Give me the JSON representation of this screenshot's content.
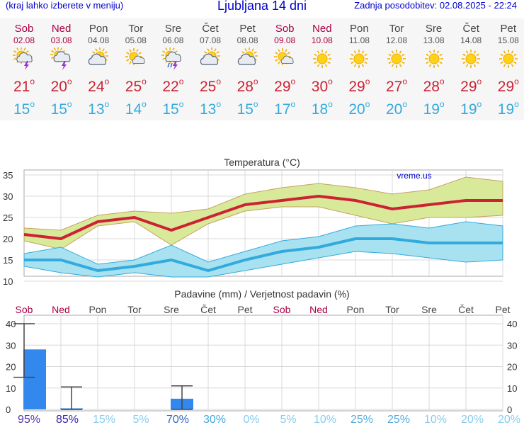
{
  "header": {
    "left_note": "(kraj lahko izberete v meniju)",
    "title": "Ljubljana 14 dni",
    "updated": "Zadnja posodobitev: 02.08.2025 - 22:24"
  },
  "days": [
    {
      "name": "Sob",
      "date": "02.08",
      "weekend": true,
      "icon": "sun-cloud-thunder-icon",
      "max": "21",
      "min": "15"
    },
    {
      "name": "Ned",
      "date": "03.08",
      "weekend": true,
      "icon": "cloud-thunder-icon",
      "max": "20",
      "min": "15"
    },
    {
      "name": "Pon",
      "date": "04.08",
      "weekend": false,
      "icon": "sun-behind-cloud-icon",
      "max": "24",
      "min": "13"
    },
    {
      "name": "Tor",
      "date": "05.08",
      "weekend": false,
      "icon": "sun-small-cloud-icon",
      "max": "25",
      "min": "14"
    },
    {
      "name": "Sre",
      "date": "06.08",
      "weekend": false,
      "icon": "sun-cloud-rain-thunder-icon",
      "max": "22",
      "min": "15"
    },
    {
      "name": "Čet",
      "date": "07.08",
      "weekend": false,
      "icon": "sun-behind-cloud-icon",
      "max": "25",
      "min": "13"
    },
    {
      "name": "Pet",
      "date": "08.08",
      "weekend": false,
      "icon": "sun-behind-cloud-icon",
      "max": "28",
      "min": "15"
    },
    {
      "name": "Sob",
      "date": "09.08",
      "weekend": true,
      "icon": "sun-small-cloud-icon",
      "max": "29",
      "min": "17"
    },
    {
      "name": "Ned",
      "date": "10.08",
      "weekend": true,
      "icon": "sun-icon",
      "max": "30",
      "min": "18"
    },
    {
      "name": "Pon",
      "date": "11.08",
      "weekend": false,
      "icon": "sun-icon",
      "max": "29",
      "min": "20"
    },
    {
      "name": "Tor",
      "date": "12.08",
      "weekend": false,
      "icon": "sun-icon",
      "max": "27",
      "min": "20"
    },
    {
      "name": "Sre",
      "date": "13.08",
      "weekend": false,
      "icon": "sun-icon",
      "max": "28",
      "min": "19"
    },
    {
      "name": "Čet",
      "date": "14.08",
      "weekend": false,
      "icon": "sun-icon",
      "max": "29",
      "min": "19"
    },
    {
      "name": "Pet",
      "date": "15.08",
      "weekend": false,
      "icon": "sun-icon",
      "max": "29",
      "min": "19"
    }
  ],
  "colors": {
    "weekend": "#aa0044",
    "weekday": "#444444",
    "max": "#cc2233",
    "min": "#33aadd",
    "max_band": "#d8ea9a",
    "min_band": "#a8e2f0",
    "bar": "#3388ee"
  },
  "chart_data": [
    {
      "type": "line",
      "title": "Temperatura (°C)",
      "watermark": "vreme.us",
      "categories": [
        "Sob",
        "Ned",
        "Pon",
        "Tor",
        "Sre",
        "Čet",
        "Pet",
        "Sob",
        "Ned",
        "Pon",
        "Tor",
        "Sre",
        "Čet",
        "Pet"
      ],
      "ylim": [
        10,
        35
      ],
      "yticks": [
        "10",
        "15",
        "20",
        "25",
        "30",
        "35"
      ],
      "grid": true,
      "series": [
        {
          "name": "max",
          "values": [
            21,
            20,
            24,
            25,
            22,
            25,
            28,
            29,
            30,
            29,
            27,
            28,
            29,
            29
          ],
          "band_low": [
            19.5,
            17.5,
            23,
            24,
            18.5,
            23.5,
            26.5,
            27.5,
            27.5,
            25.5,
            23.5,
            25,
            25,
            25.5
          ],
          "band_high": [
            22.5,
            22,
            25.5,
            26.5,
            26,
            27,
            30.5,
            32,
            33,
            32,
            30.5,
            31.5,
            34.5,
            33.5
          ]
        },
        {
          "name": "min",
          "values": [
            15,
            15,
            12.5,
            13.5,
            15,
            12.5,
            15,
            17,
            18,
            20,
            20,
            19,
            19,
            19
          ],
          "band_low": [
            13.5,
            12,
            11,
            12,
            11,
            11,
            12.5,
            14,
            15.5,
            17,
            16.5,
            15.5,
            14.5,
            15
          ],
          "band_high": [
            16.5,
            18,
            14,
            15,
            18.5,
            14.5,
            17,
            19.5,
            20.5,
            23,
            23.5,
            22.5,
            24,
            23
          ]
        }
      ]
    },
    {
      "type": "bar",
      "title": "Padavine (mm) / Verjetnost padavin (%)",
      "categories": [
        "Sob",
        "Ned",
        "Pon",
        "Tor",
        "Sre",
        "Čet",
        "Pet",
        "Sob",
        "Ned",
        "Pon",
        "Tor",
        "Sre",
        "Čet",
        "Pet"
      ],
      "ylim": [
        0,
        40
      ],
      "yticks": [
        "0",
        "10",
        "20",
        "30",
        "40"
      ],
      "values": [
        28,
        0.5,
        0,
        0,
        5,
        0,
        0,
        0,
        0,
        0,
        0,
        0,
        0,
        0
      ],
      "range_high": [
        40,
        10.5,
        null,
        null,
        11,
        null,
        null,
        null,
        null,
        null,
        null,
        null,
        null,
        null
      ],
      "range_low": [
        15,
        0,
        null,
        null,
        0,
        null,
        null,
        null,
        null,
        null,
        null,
        null,
        null,
        null
      ],
      "probability": [
        "95%",
        "85%",
        "15%",
        "5%",
        "70%",
        "30%",
        "0%",
        "5%",
        "10%",
        "25%",
        "25%",
        "10%",
        "20%",
        "20%"
      ],
      "probability_colors": [
        "#5533aa",
        "#3322aa",
        "#88ccee",
        "#88ccee",
        "#3366bb",
        "#44aadd",
        "#88ccee",
        "#88ccee",
        "#88ccee",
        "#55aadd",
        "#55aadd",
        "#88ccee",
        "#88ccee",
        "#88ccee"
      ]
    }
  ]
}
